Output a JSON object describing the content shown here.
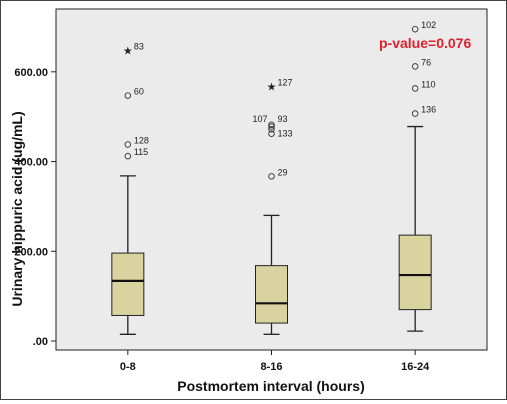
{
  "chart_data": {
    "type": "boxplot",
    "xlabel": "Postmortem interval (hours)",
    "ylabel": "Urinary hippuric acid (ug/mL)",
    "ylim": [
      -20,
      740
    ],
    "y_ticks": [
      0,
      200,
      400,
      600
    ],
    "y_tick_labels": [
      ".00",
      "200.00",
      "400.00",
      "600.00"
    ],
    "grid": false,
    "annotation": {
      "text": "p-value=0.076",
      "color": "#e0202c"
    },
    "colors": {
      "box_fill": "#d9d3a0",
      "plot_background": "#ebebeb",
      "stroke": "#222222"
    },
    "categories": [
      "0-8",
      "8-16",
      "16-24"
    ],
    "boxes": [
      {
        "category": "0-8",
        "min": 15,
        "q1": 57,
        "median": 134,
        "q3": 196,
        "max": 368,
        "outliers": [
          {
            "label": "83",
            "value": 647,
            "marker": "star"
          },
          {
            "label": "60",
            "value": 547,
            "marker": "circle"
          },
          {
            "label": "128",
            "value": 438,
            "marker": "circle"
          },
          {
            "label": "115",
            "value": 412,
            "marker": "circle"
          }
        ]
      },
      {
        "category": "8-16",
        "min": 15,
        "q1": 40,
        "median": 84,
        "q3": 168,
        "max": 280,
        "outliers": [
          {
            "label": "127",
            "value": 567,
            "marker": "star"
          },
          {
            "label": "107",
            "value": 482,
            "marker": "circle"
          },
          {
            "label": "93",
            "value": 478,
            "marker": "circle"
          },
          {
            "label": "",
            "value": 472,
            "marker": "circle"
          },
          {
            "label": "133",
            "value": 462,
            "marker": "circle"
          },
          {
            "label": "29",
            "value": 367,
            "marker": "circle"
          }
        ]
      },
      {
        "category": "16-24",
        "min": 22,
        "q1": 70,
        "median": 147,
        "q3": 236,
        "max": 478,
        "outliers": [
          {
            "label": "102",
            "value": 695,
            "marker": "circle"
          },
          {
            "label": "76",
            "value": 612,
            "marker": "circle"
          },
          {
            "label": "110",
            "value": 563,
            "marker": "circle"
          },
          {
            "label": "136",
            "value": 507,
            "marker": "circle"
          }
        ]
      }
    ]
  }
}
